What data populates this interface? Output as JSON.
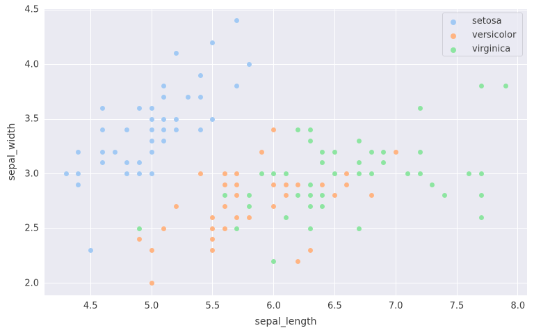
{
  "chart_data": {
    "type": "scatter",
    "title": "",
    "xlabel": "sepal_length",
    "ylabel": "sepal_width",
    "xlim": [
      4.18,
      8.13
    ],
    "ylim": [
      1.89,
      4.5
    ],
    "x_ticks": [
      "4.5",
      "5.0",
      "5.5",
      "6.0",
      "6.5",
      "7.0",
      "7.5",
      "8.0"
    ],
    "y_ticks": [
      "2.0",
      "2.5",
      "3.0",
      "3.5",
      "4.0",
      "4.5"
    ],
    "grid": true,
    "legend_position": "upper right",
    "series": [
      {
        "name": "setosa",
        "color": "#a1c9f4",
        "points": [
          [
            5.7,
            4.4
          ],
          [
            5.5,
            4.2
          ],
          [
            5.2,
            4.1
          ],
          [
            5.8,
            4.0
          ],
          [
            5.4,
            3.9
          ],
          [
            5.1,
            3.8
          ],
          [
            5.7,
            3.8
          ],
          [
            5.1,
            3.7
          ],
          [
            5.3,
            3.7
          ],
          [
            5.4,
            3.7
          ],
          [
            4.6,
            3.6
          ],
          [
            4.9,
            3.6
          ],
          [
            5.0,
            3.6
          ],
          [
            5.0,
            3.5
          ],
          [
            5.1,
            3.5
          ],
          [
            5.2,
            3.5
          ],
          [
            5.5,
            3.5
          ],
          [
            4.6,
            3.4
          ],
          [
            4.8,
            3.4
          ],
          [
            5.0,
            3.4
          ],
          [
            5.1,
            3.4
          ],
          [
            5.2,
            3.4
          ],
          [
            5.4,
            3.4
          ],
          [
            5.0,
            3.3
          ],
          [
            5.1,
            3.3
          ],
          [
            4.4,
            3.2
          ],
          [
            4.6,
            3.2
          ],
          [
            4.7,
            3.2
          ],
          [
            5.0,
            3.2
          ],
          [
            4.6,
            3.1
          ],
          [
            4.8,
            3.1
          ],
          [
            4.9,
            3.1
          ],
          [
            4.3,
            3.0
          ],
          [
            4.4,
            3.0
          ],
          [
            4.8,
            3.0
          ],
          [
            4.9,
            3.0
          ],
          [
            5.0,
            3.0
          ],
          [
            4.4,
            2.9
          ],
          [
            4.5,
            2.3
          ]
        ]
      },
      {
        "name": "versicolor",
        "color": "#ffb482",
        "points": [
          [
            6.0,
            3.4
          ],
          [
            5.9,
            3.2
          ],
          [
            7.0,
            3.2
          ],
          [
            5.4,
            3.0
          ],
          [
            5.6,
            3.0
          ],
          [
            5.7,
            3.0
          ],
          [
            6.6,
            3.0
          ],
          [
            5.6,
            2.9
          ],
          [
            5.7,
            2.9
          ],
          [
            6.0,
            2.9
          ],
          [
            6.1,
            2.9
          ],
          [
            6.2,
            2.9
          ],
          [
            6.4,
            2.9
          ],
          [
            6.6,
            2.9
          ],
          [
            5.7,
            2.8
          ],
          [
            6.1,
            2.8
          ],
          [
            6.5,
            2.8
          ],
          [
            6.8,
            2.8
          ],
          [
            5.2,
            2.7
          ],
          [
            5.6,
            2.7
          ],
          [
            6.0,
            2.7
          ],
          [
            5.5,
            2.6
          ],
          [
            5.7,
            2.6
          ],
          [
            5.8,
            2.6
          ],
          [
            5.1,
            2.5
          ],
          [
            5.5,
            2.5
          ],
          [
            5.6,
            2.5
          ],
          [
            4.9,
            2.4
          ],
          [
            5.5,
            2.4
          ],
          [
            5.0,
            2.3
          ],
          [
            5.5,
            2.3
          ],
          [
            6.3,
            2.3
          ],
          [
            6.2,
            2.2
          ],
          [
            5.0,
            2.0
          ]
        ]
      },
      {
        "name": "virginica",
        "color": "#8de5a1",
        "points": [
          [
            7.7,
            3.8
          ],
          [
            7.9,
            3.8
          ],
          [
            7.2,
            3.6
          ],
          [
            6.2,
            3.4
          ],
          [
            6.3,
            3.4
          ],
          [
            6.3,
            3.3
          ],
          [
            6.7,
            3.3
          ],
          [
            6.4,
            3.2
          ],
          [
            6.5,
            3.2
          ],
          [
            6.8,
            3.2
          ],
          [
            6.9,
            3.2
          ],
          [
            7.2,
            3.2
          ],
          [
            6.4,
            3.1
          ],
          [
            6.7,
            3.1
          ],
          [
            6.9,
            3.1
          ],
          [
            5.9,
            3.0
          ],
          [
            6.0,
            3.0
          ],
          [
            6.1,
            3.0
          ],
          [
            6.5,
            3.0
          ],
          [
            6.7,
            3.0
          ],
          [
            6.8,
            3.0
          ],
          [
            7.1,
            3.0
          ],
          [
            7.2,
            3.0
          ],
          [
            7.6,
            3.0
          ],
          [
            7.7,
            3.0
          ],
          [
            6.3,
            2.9
          ],
          [
            7.3,
            2.9
          ],
          [
            5.6,
            2.8
          ],
          [
            5.8,
            2.8
          ],
          [
            6.2,
            2.8
          ],
          [
            6.3,
            2.8
          ],
          [
            6.4,
            2.8
          ],
          [
            7.4,
            2.8
          ],
          [
            7.7,
            2.8
          ],
          [
            5.8,
            2.7
          ],
          [
            6.3,
            2.7
          ],
          [
            6.4,
            2.7
          ],
          [
            6.1,
            2.6
          ],
          [
            7.7,
            2.6
          ],
          [
            4.9,
            2.5
          ],
          [
            5.7,
            2.5
          ],
          [
            6.3,
            2.5
          ],
          [
            6.7,
            2.5
          ],
          [
            6.0,
            2.2
          ]
        ]
      }
    ]
  },
  "legend": {
    "items": [
      {
        "label": "setosa",
        "color": "#a1c9f4"
      },
      {
        "label": "versicolor",
        "color": "#ffb482"
      },
      {
        "label": "virginica",
        "color": "#8de5a1"
      }
    ]
  }
}
